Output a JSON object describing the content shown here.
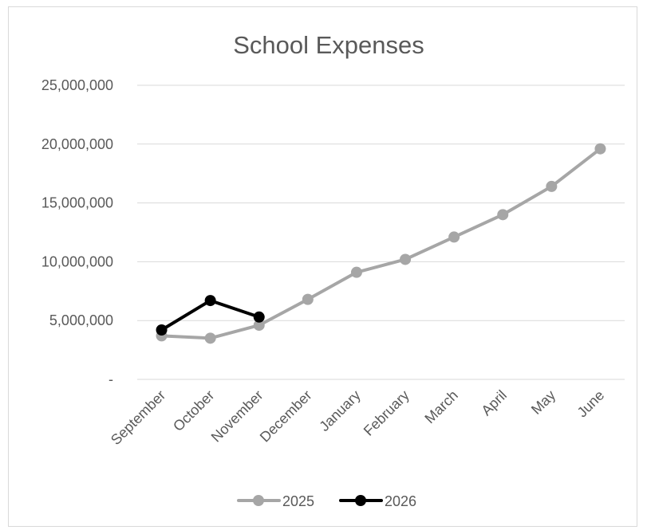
{
  "chart_data": {
    "type": "line",
    "title": "School Expenses",
    "categories": [
      "September",
      "October",
      "November",
      "December",
      "January",
      "February",
      "March",
      "April",
      "May",
      "June"
    ],
    "yticks": [
      "-",
      "5,000,000",
      "10,000,000",
      "15,000,000",
      "20,000,000",
      "25,000,000"
    ],
    "ylim": [
      0,
      25000000
    ],
    "grid": true,
    "legend_position": "bottom",
    "series": [
      {
        "name": "2025",
        "color": "#a6a6a6",
        "values": [
          3700000,
          3500000,
          4600000,
          6800000,
          9100000,
          10200000,
          12100000,
          14000000,
          16400000,
          19600000
        ]
      },
      {
        "name": "2026",
        "color": "#000000",
        "values": [
          4200000,
          6700000,
          5300000,
          null,
          null,
          null,
          null,
          null,
          null,
          null
        ]
      }
    ]
  }
}
